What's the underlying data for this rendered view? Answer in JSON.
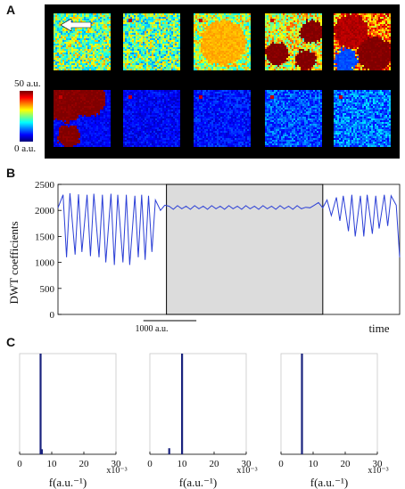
{
  "panels": {
    "a": "A",
    "b": "B",
    "c": "C"
  },
  "panel_a": {
    "colorbar": {
      "max_label": "50 a.u.",
      "min_label": "0 a.u."
    },
    "top_row_dominant": [
      "mixed",
      "mixed",
      "mixed",
      "red",
      "red"
    ],
    "bottom_row_dominant": [
      "red",
      "blue",
      "blue",
      "blue",
      "blue"
    ]
  },
  "chart_data": [
    {
      "type": "line",
      "ylabel": "DWT coefficients",
      "xlabel": "time",
      "ylim": [
        0,
        2500
      ],
      "yticks": [
        0,
        500,
        1000,
        1500,
        2000,
        2500
      ],
      "scalebar_label": "1000 a.u.",
      "series": [
        {
          "x": [
            0,
            0.06,
            0.1,
            0.14,
            0.2,
            0.24,
            0.28,
            0.34,
            0.38,
            0.42,
            0.48,
            0.52,
            0.56,
            0.62,
            0.66,
            0.7,
            0.76,
            0.8,
            0.84,
            0.9,
            0.94,
            0.98,
            1.02,
            1.06,
            1.1,
            1.14,
            1.2,
            1.25,
            1.3,
            1.35,
            1.4,
            1.45,
            1.5,
            1.55,
            1.6,
            1.65,
            1.7,
            1.75,
            1.8,
            1.85,
            1.9,
            1.95,
            2.0,
            2.05,
            2.1,
            2.15,
            2.2,
            2.25,
            2.3,
            2.35,
            2.4,
            2.45,
            2.5,
            2.55,
            2.6,
            2.65,
            2.7,
            2.75,
            2.8,
            2.85,
            2.9,
            2.95,
            3.0,
            3.05,
            3.1,
            3.15,
            3.2,
            3.26,
            3.3,
            3.34,
            3.4,
            3.44,
            3.48,
            3.54,
            3.58,
            3.62,
            3.68,
            3.72,
            3.76,
            3.82,
            3.86,
            3.9,
            3.96,
            4.0
          ],
          "y": [
            2050,
            2300,
            1100,
            2330,
            1150,
            2310,
            1200,
            2300,
            1120,
            2320,
            1100,
            2300,
            1000,
            2320,
            950,
            2300,
            1000,
            2300,
            950,
            2280,
            1100,
            2300,
            1050,
            2280,
            1200,
            2200,
            2000,
            2100,
            2080,
            2020,
            2090,
            2030,
            2080,
            2020,
            2090,
            2030,
            2080,
            2020,
            2090,
            2030,
            2080,
            2020,
            2090,
            2030,
            2080,
            2020,
            2090,
            2030,
            2080,
            2020,
            2090,
            2030,
            2080,
            2020,
            2090,
            2030,
            2080,
            2020,
            2090,
            2030,
            2060,
            2050,
            2100,
            2150,
            2050,
            2200,
            1900,
            2250,
            1800,
            2280,
            1600,
            2300,
            1500,
            2280,
            1500,
            2300,
            1550,
            2280,
            1650,
            2300,
            1700,
            2280,
            2100,
            1100
          ]
        }
      ],
      "shaded_region": [
        1.27,
        3.1
      ],
      "xlim": [
        0,
        4.0
      ]
    },
    {
      "type": "bar",
      "xlabel": "f(a.u.⁻¹)",
      "xticks": [
        0,
        10,
        20,
        30
      ],
      "x_multiplier": "x10⁻³",
      "peaks": [
        {
          "x": 6.5,
          "height": 1.0
        },
        {
          "x": 6.9,
          "height": 0.05
        }
      ]
    },
    {
      "type": "bar",
      "xlabel": "f(a.u.⁻¹)",
      "xticks": [
        0,
        10,
        20,
        30
      ],
      "x_multiplier": "x10⁻³",
      "peaks": [
        {
          "x": 10.0,
          "height": 1.0
        },
        {
          "x": 6.0,
          "height": 0.06
        }
      ]
    },
    {
      "type": "bar",
      "xlabel": "f(a.u.⁻¹)",
      "xticks": [
        0,
        10,
        20,
        30
      ],
      "x_multiplier": "x10⁻³",
      "peaks": [
        {
          "x": 6.5,
          "height": 1.0
        }
      ]
    }
  ]
}
